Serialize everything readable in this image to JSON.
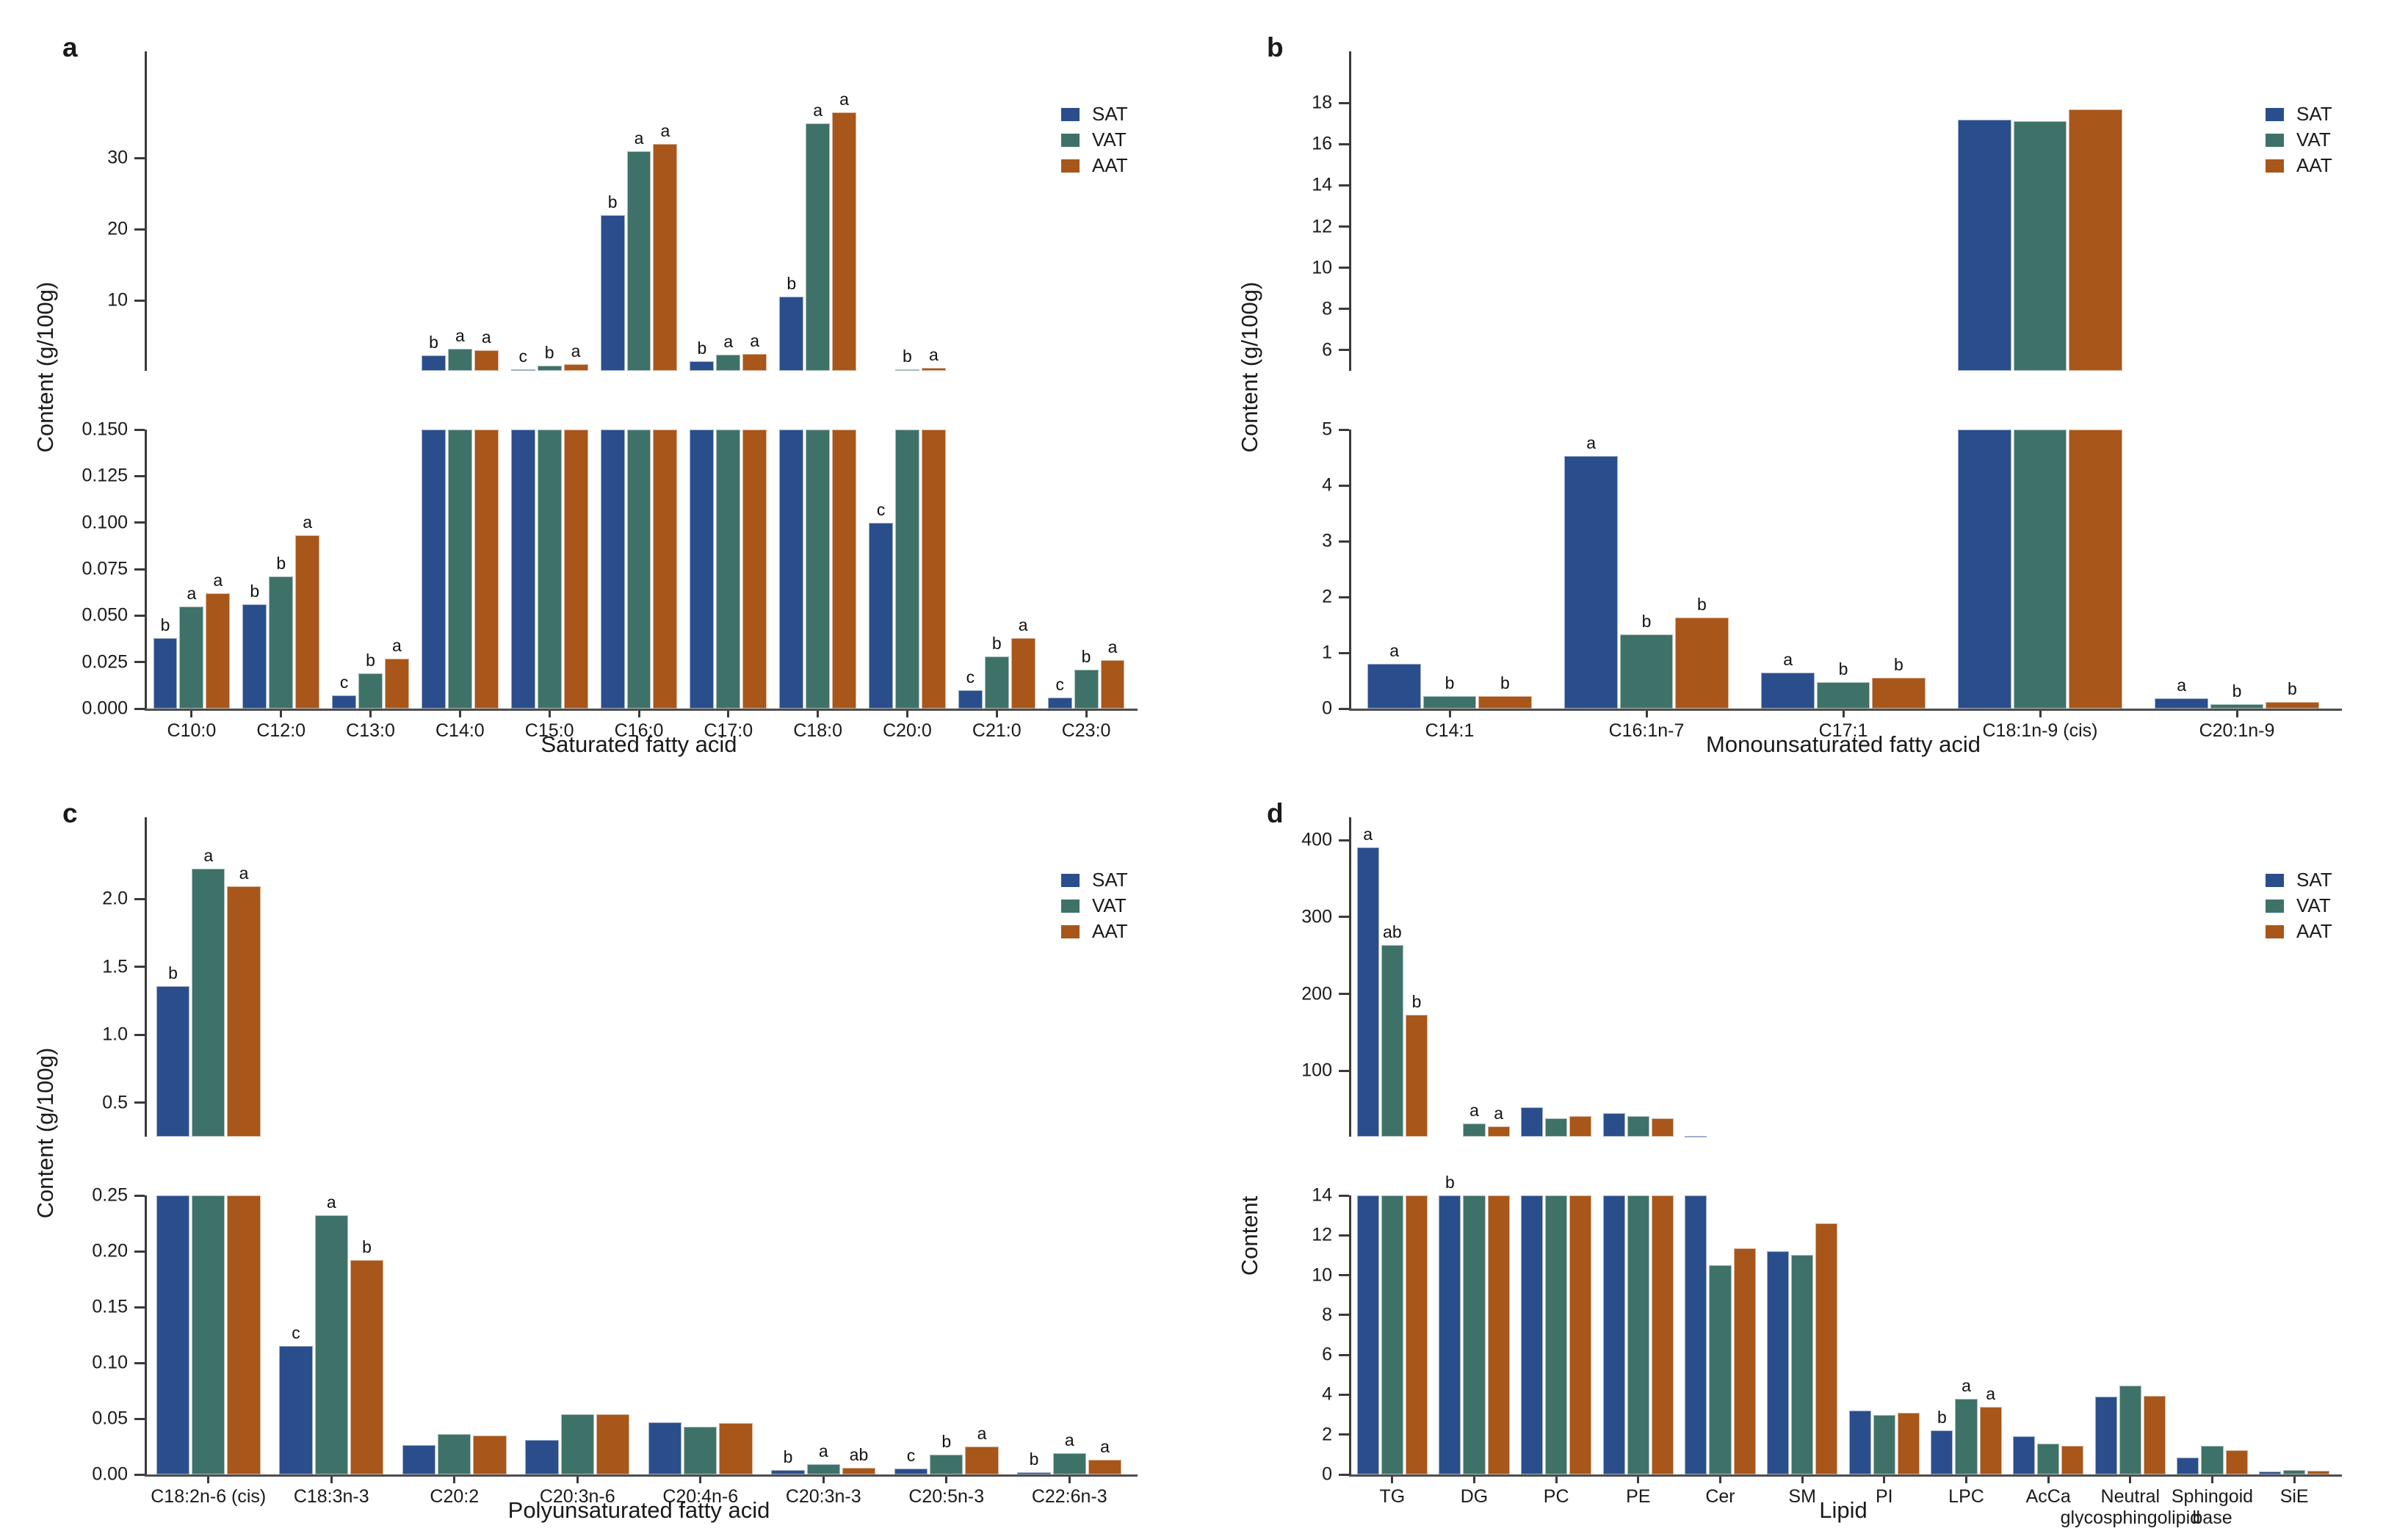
{
  "colors": {
    "SAT": "#2A4E8C",
    "VAT": "#3E7269",
    "AAT": "#A8561A"
  },
  "chart_data": [
    {
      "panel_label": "a",
      "type": "bar",
      "title": "",
      "ylabel": "Content (g/100g)",
      "xlabel": "Saturated fatty acid",
      "legend": [
        "SAT",
        "VAT",
        "AAT"
      ],
      "legend_position": "top-right",
      "grid": false,
      "broken_y_axis": true,
      "top_axis": {
        "min": 0.15,
        "max": 45,
        "ticks": [
          10,
          20,
          30
        ],
        "tick_labels": [
          "10",
          "20",
          "30"
        ]
      },
      "bottom_axis": {
        "min": 0,
        "max": 0.15,
        "ticks": [
          0,
          0.025,
          0.05,
          0.075,
          0.1,
          0.125,
          0.15
        ],
        "tick_labels": [
          "0.000",
          "0.025",
          "0.050",
          "0.075",
          "0.100",
          "0.125",
          "0.150"
        ]
      },
      "categories": [
        "C10:0",
        "C12:0",
        "C13:0",
        "C14:0",
        "C15:0",
        "C16:0",
        "C17:0",
        "C18:0",
        "C20:0",
        "C21:0",
        "C23:0"
      ],
      "series": [
        {
          "name": "SAT",
          "values": [
            0.038,
            0.056,
            0.007,
            2.3,
            0.4,
            22.0,
            1.5,
            10.6,
            0.1,
            0.01,
            0.006
          ]
        },
        {
          "name": "VAT",
          "values": [
            0.055,
            0.071,
            0.019,
            3.2,
            0.85,
            31.0,
            2.4,
            34.9,
            0.35,
            0.028,
            0.021
          ]
        },
        {
          "name": "AAT",
          "values": [
            0.062,
            0.093,
            0.027,
            3.0,
            1.05,
            32.0,
            2.5,
            36.4,
            0.55,
            0.038,
            0.026
          ]
        }
      ],
      "sig_letters": [
        [
          "b",
          "a",
          "a"
        ],
        [
          "b",
          "b",
          "a"
        ],
        [
          "c",
          "b",
          "a"
        ],
        [
          "b",
          "a",
          "a"
        ],
        [
          "c",
          "b",
          "a"
        ],
        [
          "b",
          "a",
          "a"
        ],
        [
          "b",
          "a",
          "a"
        ],
        [
          "b",
          "a",
          "a"
        ],
        [
          "c",
          "b",
          "a"
        ],
        [
          "c",
          "b",
          "a"
        ],
        [
          "c",
          "b",
          "a"
        ]
      ]
    },
    {
      "panel_label": "b",
      "type": "bar",
      "title": "",
      "ylabel": "Content (g/100g)",
      "xlabel": "Monounsaturated fatty acid",
      "legend": [
        "SAT",
        "VAT",
        "AAT"
      ],
      "legend_position": "top-right",
      "grid": false,
      "broken_y_axis": true,
      "top_axis": {
        "min": 5,
        "max": 20.5,
        "ticks": [
          6,
          8,
          10,
          12,
          14,
          16,
          18
        ],
        "tick_labels": [
          "6",
          "8",
          "10",
          "12",
          "14",
          "16",
          "18"
        ]
      },
      "bottom_axis": {
        "min": 0,
        "max": 5,
        "ticks": [
          0,
          1,
          2,
          3,
          4,
          5
        ],
        "tick_labels": [
          "0",
          "1",
          "2",
          "3",
          "4",
          "5"
        ]
      },
      "categories": [
        "C14:1",
        "C16:1n-7",
        "C17:1",
        "C18:1n-9 (cis)",
        "C20:1n-9"
      ],
      "series": [
        {
          "name": "SAT",
          "values": [
            0.8,
            4.53,
            0.65,
            17.2,
            0.18
          ]
        },
        {
          "name": "VAT",
          "values": [
            0.22,
            1.33,
            0.48,
            17.1,
            0.08
          ]
        },
        {
          "name": "AAT",
          "values": [
            0.22,
            1.63,
            0.55,
            17.7,
            0.12
          ]
        }
      ],
      "sig_letters": [
        [
          "a",
          "b",
          "b"
        ],
        [
          "a",
          "b",
          "b"
        ],
        [
          "a",
          "b",
          "b"
        ],
        [
          "",
          "",
          ""
        ],
        [
          "a",
          "b",
          "b"
        ]
      ]
    },
    {
      "panel_label": "c",
      "type": "bar",
      "title": "",
      "ylabel": "Content (g/100g)",
      "xlabel": "Polyunsaturated fatty acid",
      "legend": [
        "SAT",
        "VAT",
        "AAT"
      ],
      "legend_position": "top-right",
      "grid": false,
      "broken_y_axis": true,
      "top_axis": {
        "min": 0.25,
        "max": 2.6,
        "ticks": [
          0.5,
          1.0,
          1.5,
          2.0
        ],
        "tick_labels": [
          "0.5",
          "1.0",
          "1.5",
          "2.0"
        ]
      },
      "bottom_axis": {
        "min": 0,
        "max": 0.25,
        "ticks": [
          0,
          0.05,
          0.1,
          0.15,
          0.2,
          0.25
        ],
        "tick_labels": [
          "0.00",
          "0.05",
          "0.10",
          "0.15",
          "0.20",
          "0.25"
        ]
      },
      "categories": [
        "C18:2n-6 (cis)",
        "C18:3n-3",
        "C20:2",
        "C20:3n-6",
        "C20:4n-6",
        "C20:3n-3",
        "C20:5n-3",
        "C22:6n-3"
      ],
      "series": [
        {
          "name": "SAT",
          "values": [
            1.36,
            0.115,
            0.026,
            0.031,
            0.047,
            0.004,
            0.005,
            0.002
          ]
        },
        {
          "name": "VAT",
          "values": [
            2.22,
            0.232,
            0.036,
            0.054,
            0.043,
            0.009,
            0.018,
            0.019
          ]
        },
        {
          "name": "AAT",
          "values": [
            2.09,
            0.192,
            0.035,
            0.054,
            0.046,
            0.006,
            0.025,
            0.013
          ]
        }
      ],
      "sig_letters": [
        [
          "b",
          "a",
          "a"
        ],
        [
          "c",
          "a",
          "b"
        ],
        [
          "",
          "",
          ""
        ],
        [
          "",
          "",
          ""
        ],
        [
          "",
          "",
          ""
        ],
        [
          "b",
          "a",
          "ab"
        ],
        [
          "c",
          "b",
          "a"
        ],
        [
          "b",
          "a",
          "a"
        ]
      ]
    },
    {
      "panel_label": "d",
      "type": "bar",
      "title": "",
      "ylabel": "Content",
      "xlabel": "Lipid",
      "legend": [
        "SAT",
        "VAT",
        "AAT"
      ],
      "legend_position": "top-right",
      "grid": false,
      "broken_y_axis": true,
      "top_axis": {
        "min": 14,
        "max": 430,
        "ticks": [
          100,
          200,
          300,
          400
        ],
        "tick_labels": [
          "100",
          "200",
          "300",
          "400"
        ]
      },
      "bottom_axis": {
        "min": 0,
        "max": 14,
        "ticks": [
          0,
          2,
          4,
          6,
          8,
          10,
          12,
          14
        ],
        "tick_labels": [
          "0",
          "2",
          "4",
          "6",
          "8",
          "10",
          "12",
          "14"
        ]
      },
      "categories": [
        "TG",
        "DG",
        "PC",
        "PE",
        "Cer",
        "SM",
        "PI",
        "LPC",
        "AcCa",
        "Neutral\nglycosphingolipid",
        "Sphingoid\nbase",
        "SiE"
      ],
      "series": [
        {
          "name": "SAT",
          "values": [
            391,
            14,
            52,
            45,
            14.8,
            11.2,
            3.2,
            2.2,
            1.9,
            3.9,
            0.85,
            0.15
          ]
        },
        {
          "name": "VAT",
          "values": [
            264,
            31,
            38,
            41,
            10.5,
            11.0,
            3.0,
            3.8,
            1.55,
            4.45,
            1.45,
            0.22
          ]
        },
        {
          "name": "AAT",
          "values": [
            173,
            27,
            41,
            38,
            11.35,
            12.6,
            3.1,
            3.4,
            1.45,
            3.95,
            1.2,
            0.18
          ]
        }
      ],
      "sig_letters": [
        [
          "a",
          "ab",
          "b"
        ],
        [
          "b",
          "a",
          "a"
        ],
        [
          "",
          "",
          ""
        ],
        [
          "",
          "",
          ""
        ],
        [
          "",
          "",
          ""
        ],
        [
          "",
          "",
          ""
        ],
        [
          "",
          "",
          ""
        ],
        [
          "b",
          "a",
          "a"
        ],
        [
          "",
          "",
          ""
        ],
        [
          "",
          "",
          ""
        ],
        [
          "",
          "",
          ""
        ],
        [
          "",
          "",
          ""
        ]
      ]
    }
  ]
}
